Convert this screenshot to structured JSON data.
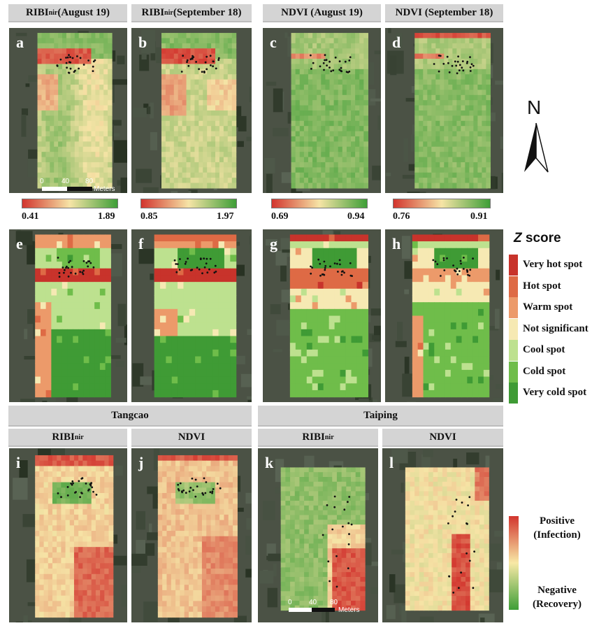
{
  "row1_headers": [
    {
      "main": "RIBI",
      "sub": "nir",
      "rest": " (August 19)"
    },
    {
      "main": "RIBI",
      "sub": "nir",
      "rest": " (September 18)"
    },
    {
      "main": "NDVI (August 19)",
      "sub": "",
      "rest": ""
    },
    {
      "main": "NDVI (September 18)",
      "sub": "",
      "rest": ""
    }
  ],
  "panel_labels": [
    "a",
    "b",
    "c",
    "d",
    "e",
    "f",
    "g",
    "h",
    "i",
    "j",
    "k",
    "l"
  ],
  "colorbars": [
    {
      "min": "0.41",
      "max": "1.89"
    },
    {
      "min": "0.85",
      "max": "1.97"
    },
    {
      "min": "0.69",
      "max": "0.94"
    },
    {
      "min": "0.76",
      "max": "0.91"
    }
  ],
  "scale_top": {
    "t0": "0",
    "t1": "40",
    "t2": "80",
    "unit": "Meters"
  },
  "scale_bottom": {
    "t0": "0",
    "t1": "40",
    "t2": "80",
    "unit": "Meters"
  },
  "north_label": "N",
  "zscore_legend": {
    "title_italic": "Z",
    "title_rest": " score",
    "items": [
      {
        "label": "Very hot spot",
        "color": "#c8332b"
      },
      {
        "label": "Hot spot",
        "color": "#de6a45"
      },
      {
        "label": "Warm spot",
        "color": "#ec9a6a"
      },
      {
        "label": "Not significant",
        "color": "#f6e9b3"
      },
      {
        "label": "Cool spot",
        "color": "#bde18f"
      },
      {
        "label": "Cold spot",
        "color": "#6fbd4a"
      },
      {
        "label": "Very cold spot",
        "color": "#3f9b35"
      }
    ]
  },
  "site_headers": {
    "tangcao": "Tangcao",
    "taiping": "Taiping"
  },
  "row4_headers": [
    {
      "main": "RIBI",
      "sub": "nir"
    },
    {
      "main": "NDVI",
      "sub": ""
    },
    {
      "main": "RIBI",
      "sub": "nir"
    },
    {
      "main": "NDVI",
      "sub": ""
    }
  ],
  "change_legend": {
    "positive": "Positive",
    "positive_sub": "(Infection)",
    "negative": "Negative",
    "negative_sub": "(Recovery)"
  },
  "colors": {
    "red": "#d2352e",
    "yellow": "#f8e9a6",
    "green": "#3e9e37"
  }
}
